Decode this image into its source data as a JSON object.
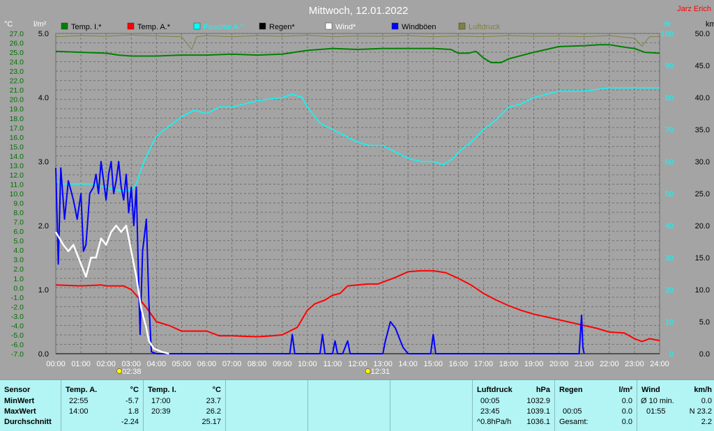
{
  "title": "Mittwoch, 12.01.2022",
  "author": "Jarz Erich",
  "units": {
    "left_temp": "°C",
    "left_rain": "l/m²",
    "right_pct": "%",
    "right_wind": "km/h"
  },
  "colors": {
    "temp_in": "#008000",
    "temp_out": "#ff0000",
    "humidity": "#00ffff",
    "rain": "#000000",
    "wind": "#ffffff",
    "gust": "#0000ff",
    "pressure": "#808040"
  },
  "legend": [
    {
      "label": "Temp. I.*",
      "color": "#008000"
    },
    {
      "label": "Temp. A.*",
      "color": "#ff0000"
    },
    {
      "label": "Feuchte A.*",
      "color": "#00ffff"
    },
    {
      "label": "Regen*",
      "color": "#000000"
    },
    {
      "label": "Wind*",
      "color": "#ffffff"
    },
    {
      "label": "Windböen",
      "color": "#0000ff"
    },
    {
      "label": "Luftdruck",
      "color": "#808040"
    }
  ],
  "markers": [
    {
      "time": "02:38"
    },
    {
      "time": "12:31"
    }
  ],
  "chart_data": {
    "type": "line",
    "title": "Mittwoch, 12.01.2022",
    "x_ticks": [
      "00:00",
      "01:00",
      "02:00",
      "03:00",
      "04:00",
      "05:00",
      "06:00",
      "07:00",
      "08:00",
      "09:00",
      "10:00",
      "11:00",
      "12:00",
      "13:00",
      "14:00",
      "15:00",
      "16:00",
      "17:00",
      "18:00",
      "19:00",
      "20:00",
      "21:00",
      "22:00",
      "23:00",
      "24:00"
    ],
    "xlim_hours": [
      0,
      24
    ],
    "temp_ticks": [
      "27.0",
      "26.0",
      "25.0",
      "24.0",
      "23.0",
      "22.0",
      "21.0",
      "20.0",
      "19.0",
      "18.0",
      "17.0",
      "16.0",
      "15.0",
      "14.0",
      "13.0",
      "12.0",
      "11.0",
      "10.0",
      "9.0",
      "8.0",
      "7.0",
      "6.0",
      "5.0",
      "4.0",
      "3.0",
      "2.0",
      "1.0",
      "0.0",
      "-1.0",
      "-2.0",
      "-3.0",
      "-4.0",
      "-5.0",
      "-6.0",
      "-7.0"
    ],
    "temp_lim": [
      -7,
      27
    ],
    "rain_ticks": [
      "5.0",
      "4.0",
      "3.0",
      "2.0",
      "1.0",
      "0.0"
    ],
    "rain_lim": [
      0,
      5
    ],
    "pct_ticks": [
      "100",
      "90",
      "80",
      "70",
      "60",
      "50",
      "40",
      "30",
      "20",
      "10",
      "0"
    ],
    "pct_lim": [
      0,
      100
    ],
    "wind_ticks": [
      "50.0",
      "45.0",
      "40.0",
      "35.0",
      "30.0",
      "25.0",
      "20.0",
      "15.0",
      "10.0",
      "5.0",
      "0.0"
    ],
    "wind_lim": [
      0,
      50
    ],
    "grid": true,
    "series": [
      {
        "name": "Temp. I.*",
        "axis": "temp",
        "color": "#008000",
        "points": [
          [
            0,
            25.1
          ],
          [
            1,
            25.0
          ],
          [
            2,
            24.9
          ],
          [
            2.5,
            24.7
          ],
          [
            3,
            24.6
          ],
          [
            4,
            24.6
          ],
          [
            5,
            24.7
          ],
          [
            6,
            24.7
          ],
          [
            7,
            24.8
          ],
          [
            8,
            24.7
          ],
          [
            9,
            24.8
          ],
          [
            10,
            25.2
          ],
          [
            11,
            25.4
          ],
          [
            12,
            25.3
          ],
          [
            13,
            25.4
          ],
          [
            14,
            25.4
          ],
          [
            15,
            25.4
          ],
          [
            15.7,
            25.3
          ],
          [
            16,
            24.9
          ],
          [
            16.4,
            24.9
          ],
          [
            16.7,
            25.1
          ],
          [
            17,
            24.4
          ],
          [
            17.3,
            23.9
          ],
          [
            17.7,
            23.9
          ],
          [
            18,
            24.3
          ],
          [
            19,
            25.0
          ],
          [
            20,
            25.6
          ],
          [
            21,
            25.7
          ],
          [
            21.6,
            25.8
          ],
          [
            22,
            25.8
          ],
          [
            22.7,
            25.5
          ],
          [
            23,
            25.4
          ],
          [
            23.4,
            25.0
          ],
          [
            24,
            24.9
          ]
        ]
      },
      {
        "name": "Temp. A.*",
        "axis": "temp",
        "color": "#ff0000",
        "points": [
          [
            0,
            0.3
          ],
          [
            1,
            0.2
          ],
          [
            1.8,
            0.3
          ],
          [
            2,
            0.2
          ],
          [
            2.7,
            0.2
          ],
          [
            3,
            -0.2
          ],
          [
            3.3,
            -1.1
          ],
          [
            3.6,
            -2.1
          ],
          [
            4,
            -3.6
          ],
          [
            4.5,
            -4.0
          ],
          [
            5,
            -4.6
          ],
          [
            6,
            -4.6
          ],
          [
            6.5,
            -5.1
          ],
          [
            7,
            -5.1
          ],
          [
            8,
            -5.2
          ],
          [
            8.6,
            -5.1
          ],
          [
            9,
            -5.0
          ],
          [
            9.3,
            -4.6
          ],
          [
            9.6,
            -4.2
          ],
          [
            10,
            -2.4
          ],
          [
            10.3,
            -1.7
          ],
          [
            10.7,
            -1.3
          ],
          [
            11,
            -0.8
          ],
          [
            11.3,
            -0.6
          ],
          [
            11.6,
            0.2
          ],
          [
            12,
            0.3
          ],
          [
            12.4,
            0.4
          ],
          [
            12.8,
            0.4
          ],
          [
            13,
            0.6
          ],
          [
            13.5,
            1.1
          ],
          [
            14,
            1.7
          ],
          [
            14.5,
            1.8
          ],
          [
            15,
            1.8
          ],
          [
            15.5,
            1.6
          ],
          [
            16,
            1.0
          ],
          [
            16.5,
            0.3
          ],
          [
            17,
            -0.6
          ],
          [
            17.5,
            -1.3
          ],
          [
            18,
            -1.9
          ],
          [
            18.5,
            -2.4
          ],
          [
            19,
            -2.8
          ],
          [
            19.5,
            -3.1
          ],
          [
            20,
            -3.4
          ],
          [
            20.5,
            -3.7
          ],
          [
            21,
            -4.0
          ],
          [
            21.5,
            -4.3
          ],
          [
            22,
            -4.7
          ],
          [
            22.6,
            -4.8
          ],
          [
            23,
            -5.4
          ],
          [
            23.3,
            -5.7
          ],
          [
            23.6,
            -5.4
          ],
          [
            24,
            -5.6
          ]
        ]
      },
      {
        "name": "Feuchte A.*",
        "axis": "pct",
        "color": "#00ffff",
        "points": [
          [
            0,
            54
          ],
          [
            0.3,
            53
          ],
          [
            1,
            53
          ],
          [
            1.5,
            53
          ],
          [
            2,
            52
          ],
          [
            2.5,
            51
          ],
          [
            3,
            51
          ],
          [
            3.2,
            53
          ],
          [
            3.5,
            60
          ],
          [
            4,
            68
          ],
          [
            4.5,
            71
          ],
          [
            5,
            74
          ],
          [
            5.5,
            76
          ],
          [
            6,
            75
          ],
          [
            6.5,
            77
          ],
          [
            7,
            77
          ],
          [
            8,
            79
          ],
          [
            9,
            80
          ],
          [
            9.4,
            81
          ],
          [
            9.8,
            80
          ],
          [
            10,
            77
          ],
          [
            10.5,
            72
          ],
          [
            11,
            70
          ],
          [
            11.5,
            68
          ],
          [
            12,
            66
          ],
          [
            12.5,
            65
          ],
          [
            13,
            65
          ],
          [
            13.5,
            63
          ],
          [
            14,
            61
          ],
          [
            14.5,
            60
          ],
          [
            15,
            60
          ],
          [
            15.4,
            59
          ],
          [
            15.8,
            61
          ],
          [
            16,
            63
          ],
          [
            16.5,
            66
          ],
          [
            17,
            70
          ],
          [
            17.5,
            73
          ],
          [
            18,
            77
          ],
          [
            18.5,
            78
          ],
          [
            19,
            80
          ],
          [
            20,
            82
          ],
          [
            21,
            82
          ],
          [
            22,
            83
          ],
          [
            23,
            83
          ],
          [
            24,
            83
          ]
        ]
      },
      {
        "name": "Wind*",
        "axis": "wind",
        "color": "#ffffff",
        "points": [
          [
            0,
            19
          ],
          [
            0.3,
            17
          ],
          [
            0.5,
            16
          ],
          [
            0.7,
            17
          ],
          [
            0.9,
            15
          ],
          [
            1,
            14
          ],
          [
            1.2,
            12
          ],
          [
            1.4,
            15
          ],
          [
            1.6,
            15
          ],
          [
            1.8,
            18
          ],
          [
            2,
            17
          ],
          [
            2.2,
            19
          ],
          [
            2.4,
            20
          ],
          [
            2.6,
            19
          ],
          [
            2.8,
            20
          ],
          [
            3,
            16
          ],
          [
            3.2,
            12
          ],
          [
            3.4,
            7
          ],
          [
            3.6,
            4
          ],
          [
            3.7,
            2
          ],
          [
            3.9,
            0.8
          ],
          [
            4.2,
            0.3
          ],
          [
            4.5,
            0
          ]
        ]
      },
      {
        "name": "Windböen",
        "axis": "wind",
        "color": "#0000ff",
        "points": [
          [
            0,
            29
          ],
          [
            0.1,
            14
          ],
          [
            0.2,
            29
          ],
          [
            0.35,
            21
          ],
          [
            0.5,
            27
          ],
          [
            0.7,
            24
          ],
          [
            0.85,
            21
          ],
          [
            1.0,
            25
          ],
          [
            1.1,
            16
          ],
          [
            1.2,
            17
          ],
          [
            1.35,
            25
          ],
          [
            1.5,
            26
          ],
          [
            1.6,
            28
          ],
          [
            1.7,
            25
          ],
          [
            1.8,
            30
          ],
          [
            2.0,
            24
          ],
          [
            2.1,
            28
          ],
          [
            2.2,
            30
          ],
          [
            2.3,
            25
          ],
          [
            2.4,
            27
          ],
          [
            2.5,
            30
          ],
          [
            2.6,
            26
          ],
          [
            2.7,
            24
          ],
          [
            2.8,
            28
          ],
          [
            2.9,
            22
          ],
          [
            3.0,
            26
          ],
          [
            3.1,
            20
          ],
          [
            3.2,
            26
          ],
          [
            3.3,
            10
          ],
          [
            3.35,
            3
          ],
          [
            3.45,
            16
          ],
          [
            3.6,
            21
          ],
          [
            3.7,
            8
          ],
          [
            3.8,
            0.3
          ],
          [
            4.0,
            0
          ],
          [
            9.3,
            0
          ],
          [
            9.4,
            3
          ],
          [
            9.5,
            0
          ],
          [
            10.5,
            0
          ],
          [
            10.6,
            3
          ],
          [
            10.7,
            0
          ],
          [
            11.0,
            0
          ],
          [
            11.1,
            2
          ],
          [
            11.2,
            0
          ],
          [
            11.4,
            0
          ],
          [
            11.5,
            1
          ],
          [
            11.6,
            2
          ],
          [
            11.7,
            0
          ],
          [
            13.0,
            0
          ],
          [
            13.1,
            2
          ],
          [
            13.3,
            5
          ],
          [
            13.5,
            4
          ],
          [
            13.7,
            2
          ],
          [
            13.8,
            1
          ],
          [
            14.0,
            0
          ],
          [
            14.9,
            0
          ],
          [
            15.0,
            3
          ],
          [
            15.1,
            0
          ],
          [
            20.8,
            0
          ],
          [
            20.9,
            6
          ],
          [
            20.95,
            1
          ],
          [
            21.0,
            0
          ]
        ]
      },
      {
        "name": "Luftdruck",
        "axis": "pct",
        "color": "#808040",
        "points": [
          [
            0,
            99.0
          ],
          [
            1,
            99.3
          ],
          [
            2,
            99.1
          ],
          [
            3,
            99.5
          ],
          [
            4,
            99.2
          ],
          [
            5,
            99.0
          ],
          [
            5.4,
            95.0
          ],
          [
            5.6,
            99.0
          ],
          [
            6,
            99.3
          ],
          [
            7,
            99.0
          ],
          [
            8,
            99.3
          ],
          [
            9,
            99.1
          ],
          [
            10,
            99.4
          ],
          [
            11,
            99.0
          ],
          [
            12,
            99.2
          ],
          [
            13,
            99.1
          ],
          [
            14,
            99.3
          ],
          [
            15,
            99.0
          ],
          [
            16,
            99.2
          ],
          [
            17,
            99.0
          ],
          [
            18,
            99.3
          ],
          [
            19,
            99.1
          ],
          [
            20,
            99.2
          ],
          [
            21,
            99.0
          ],
          [
            22,
            99.3
          ],
          [
            23,
            98.5
          ],
          [
            23.3,
            96.0
          ],
          [
            23.6,
            99.0
          ],
          [
            24,
            99.0
          ]
        ]
      },
      {
        "name": "Regen*",
        "axis": "rain",
        "color": "#000000",
        "points": [
          [
            0,
            0
          ],
          [
            24,
            0
          ]
        ]
      }
    ]
  },
  "stats": {
    "sensor": {
      "header": "Sensor",
      "rows": [
        "MinWert",
        "MaxWert",
        "Durchschnitt"
      ]
    },
    "temp_a": {
      "header": "Temp. A.",
      "unit": "°C",
      "min_time": "22:55",
      "min": "-5.7",
      "max_time": "14:00",
      "max": "1.8",
      "avg": "-2.24"
    },
    "temp_i": {
      "header": "Temp. I.",
      "unit": "°C",
      "min_time": "17:00",
      "min": "23.7",
      "max_time": "20:39",
      "max": "26.2",
      "avg": "25.17"
    },
    "pressure": {
      "header": "Luftdruck",
      "unit": "hPa",
      "min_time": "00:05",
      "min": "1032.9",
      "max_time": "23:45",
      "max": "1039.1",
      "trend_label": "^0.8hPa/h",
      "trend": "1036.1"
    },
    "rain": {
      "header": "Regen",
      "unit": "l/m²",
      "r1_label": "",
      "r1": "0.0",
      "r2_label": "00:05",
      "r2": "0.0",
      "r3_label": "Gesamt:",
      "r3": "0.0"
    },
    "wind": {
      "header": "Wind",
      "unit": "km/h",
      "r1_label": "Ø 10 min.",
      "r1": "0.0",
      "r2_label": "01:55",
      "r2": "N 23.2",
      "r3": "2.2"
    }
  }
}
